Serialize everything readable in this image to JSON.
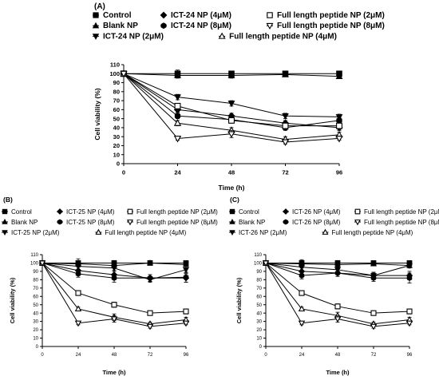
{
  "panels": [
    {
      "panel_label": "(A)",
      "legend": [
        "Control",
        "ICT-24 NP (4μM)",
        "Full length peptide NP (2μM)",
        "Blank NP",
        "ICT-24 NP (8μM)",
        "Full length peptide NP (8μM)",
        "ICT-24 NP (2μM)",
        "Full length peptide NP (4μM)"
      ]
    },
    {
      "panel_label": "(B)",
      "legend": [
        "Control",
        "ICT-25 NP (4μM)",
        "Full length peptide NP (2μM)",
        "Blank NP",
        "ICT-25 NP (8μM)",
        "Full length peptide NP (8μM)",
        "ICT-25 NP (2μM)",
        "Full length peptide NP (4μM)"
      ]
    },
    {
      "panel_label": "(C)",
      "legend": [
        "Control",
        "ICT-26 NP (4μM)",
        "Full length peptide NP (2μM)",
        "Blank NP",
        "ICT-26 NP (8μM)",
        "Full length peptide NP (8μM)",
        "ICT-26 NP (2μM)",
        "Full length peptide NP (4μM)"
      ]
    }
  ],
  "chart_data": [
    {
      "type": "line",
      "xlabel": "Time (h)",
      "ylabel": "Cell viability (%)",
      "x": [
        0,
        24,
        48,
        72,
        96
      ],
      "xlim": [
        0,
        96
      ],
      "ylim": [
        0,
        110
      ],
      "yticks": [
        0,
        10,
        20,
        30,
        40,
        50,
        60,
        70,
        80,
        90,
        100,
        110
      ],
      "series": [
        {
          "name": "Control",
          "marker": "square-filled",
          "values": [
            100,
            100,
            100,
            100,
            100
          ],
          "errors": [
            0,
            4,
            3,
            2,
            2
          ]
        },
        {
          "name": "Blank NP",
          "marker": "triangle-up-filled",
          "values": [
            100,
            98,
            98,
            99,
            97
          ],
          "errors": [
            0,
            3,
            3,
            2,
            2
          ]
        },
        {
          "name": "ICT-24 NP (2μM)",
          "marker": "triangle-down-filled",
          "values": [
            100,
            74,
            67,
            53,
            52
          ],
          "errors": [
            0,
            3,
            3,
            3,
            3
          ]
        },
        {
          "name": "ICT-24 NP (4μM)",
          "marker": "diamond-filled",
          "values": [
            100,
            60,
            53,
            45,
            40
          ],
          "errors": [
            0,
            3,
            3,
            3,
            3
          ]
        },
        {
          "name": "ICT-24 NP (8μM)",
          "marker": "hexagon-filled",
          "values": [
            100,
            53,
            49,
            40,
            48
          ],
          "errors": [
            0,
            3,
            3,
            3,
            3
          ]
        },
        {
          "name": "Full length peptide NP (2μM)",
          "marker": "square-open",
          "values": [
            100,
            64,
            48,
            42,
            42
          ],
          "errors": [
            0,
            3,
            3,
            3,
            3
          ]
        },
        {
          "name": "Full length peptide NP (4μM)",
          "marker": "triangle-up-open",
          "values": [
            100,
            45,
            37,
            27,
            32
          ],
          "errors": [
            0,
            3,
            3,
            3,
            3
          ]
        },
        {
          "name": "Full length peptide NP (8μM)",
          "marker": "triangle-down-open",
          "values": [
            100,
            28,
            33,
            24,
            28
          ],
          "errors": [
            0,
            2,
            4,
            2,
            2
          ]
        }
      ]
    },
    {
      "type": "line",
      "xlabel": "Time (h)",
      "ylabel": "Cell viability (%)",
      "x": [
        0,
        24,
        48,
        72,
        96
      ],
      "xlim": [
        0,
        96
      ],
      "ylim": [
        0,
        110
      ],
      "yticks": [
        0,
        10,
        20,
        30,
        40,
        50,
        60,
        70,
        80,
        90,
        100,
        110
      ],
      "series": [
        {
          "name": "Control",
          "marker": "square-filled",
          "values": [
            100,
            100,
            100,
            100,
            100
          ],
          "errors": [
            0,
            5,
            3,
            2,
            2
          ]
        },
        {
          "name": "Blank NP",
          "marker": "triangle-up-filled",
          "values": [
            100,
            99,
            97,
            100,
            98
          ],
          "errors": [
            0,
            3,
            3,
            2,
            2
          ]
        },
        {
          "name": "ICT-25 NP (2μM)",
          "marker": "triangle-down-filled",
          "values": [
            100,
            96,
            94,
            80,
            92
          ],
          "errors": [
            0,
            4,
            4,
            3,
            4
          ]
        },
        {
          "name": "ICT-25 NP (4μM)",
          "marker": "diamond-filled",
          "values": [
            100,
            91,
            86,
            82,
            82
          ],
          "errors": [
            0,
            4,
            5,
            4,
            5
          ]
        },
        {
          "name": "ICT-25 NP (8μM)",
          "marker": "hexagon-filled",
          "values": [
            100,
            87,
            82,
            82,
            83
          ],
          "errors": [
            0,
            4,
            5,
            4,
            6
          ]
        },
        {
          "name": "Full length peptide NP (2μM)",
          "marker": "square-open",
          "values": [
            100,
            64,
            50,
            40,
            42
          ],
          "errors": [
            0,
            2,
            3,
            2,
            3
          ]
        },
        {
          "name": "Full length peptide NP (4μM)",
          "marker": "triangle-up-open",
          "values": [
            100,
            45,
            35,
            27,
            32
          ],
          "errors": [
            0,
            2,
            4,
            2,
            3
          ]
        },
        {
          "name": "Full length peptide NP (8μM)",
          "marker": "triangle-down-open",
          "values": [
            100,
            28,
            33,
            24,
            28
          ],
          "errors": [
            0,
            2,
            4,
            2,
            2
          ]
        }
      ]
    },
    {
      "type": "line",
      "xlabel": "Time (h)",
      "ylabel": "Cell viability (%)",
      "x": [
        0,
        24,
        48,
        72,
        96
      ],
      "xlim": [
        0,
        96
      ],
      "ylim": [
        0,
        110
      ],
      "yticks": [
        0,
        10,
        20,
        30,
        40,
        50,
        60,
        70,
        80,
        90,
        100,
        110
      ],
      "series": [
        {
          "name": "Control",
          "marker": "square-filled",
          "values": [
            100,
            100,
            100,
            100,
            100
          ],
          "errors": [
            0,
            4,
            3,
            2,
            2
          ]
        },
        {
          "name": "Blank NP",
          "marker": "triangle-up-filled",
          "values": [
            100,
            99,
            98,
            99,
            97
          ],
          "errors": [
            0,
            3,
            3,
            2,
            2
          ]
        },
        {
          "name": "ICT-26 NP (2μM)",
          "marker": "triangle-down-filled",
          "values": [
            100,
            95,
            92,
            85,
            97
          ],
          "errors": [
            0,
            4,
            4,
            3,
            3
          ]
        },
        {
          "name": "ICT-26 NP (4μM)",
          "marker": "diamond-filled",
          "values": [
            100,
            90,
            88,
            85,
            85
          ],
          "errors": [
            0,
            4,
            4,
            4,
            5
          ]
        },
        {
          "name": "ICT-26 NP (8μM)",
          "marker": "hexagon-filled",
          "values": [
            100,
            85,
            88,
            82,
            82
          ],
          "errors": [
            0,
            4,
            4,
            4,
            6
          ]
        },
        {
          "name": "Full length peptide NP (2μM)",
          "marker": "square-open",
          "values": [
            100,
            64,
            48,
            40,
            42
          ],
          "errors": [
            0,
            2,
            3,
            2,
            3
          ]
        },
        {
          "name": "Full length peptide NP (4μM)",
          "marker": "triangle-up-open",
          "values": [
            100,
            45,
            37,
            27,
            32
          ],
          "errors": [
            0,
            2,
            4,
            2,
            3
          ]
        },
        {
          "name": "Full length peptide NP (8μM)",
          "marker": "triangle-down-open",
          "values": [
            100,
            28,
            33,
            24,
            28
          ],
          "errors": [
            0,
            2,
            4,
            2,
            2
          ]
        }
      ]
    }
  ]
}
